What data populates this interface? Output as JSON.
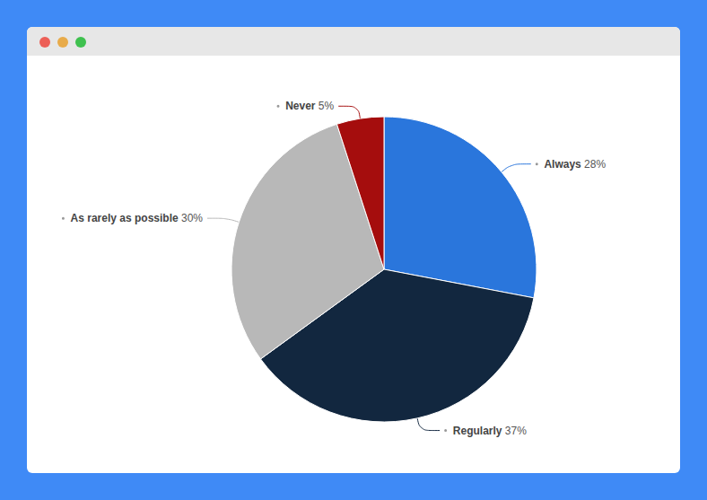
{
  "chart_data": {
    "type": "pie",
    "categories": [
      "Always",
      "Regularly",
      "As rarely as possible",
      "Never"
    ],
    "values": [
      28,
      37,
      30,
      5
    ],
    "value_labels": [
      "28%",
      "37%",
      "30%",
      "5%"
    ],
    "colors": [
      "#2a76dc",
      "#12273f",
      "#b8b8b8",
      "#a50d0d"
    ],
    "data_labels": true,
    "legend": false
  }
}
